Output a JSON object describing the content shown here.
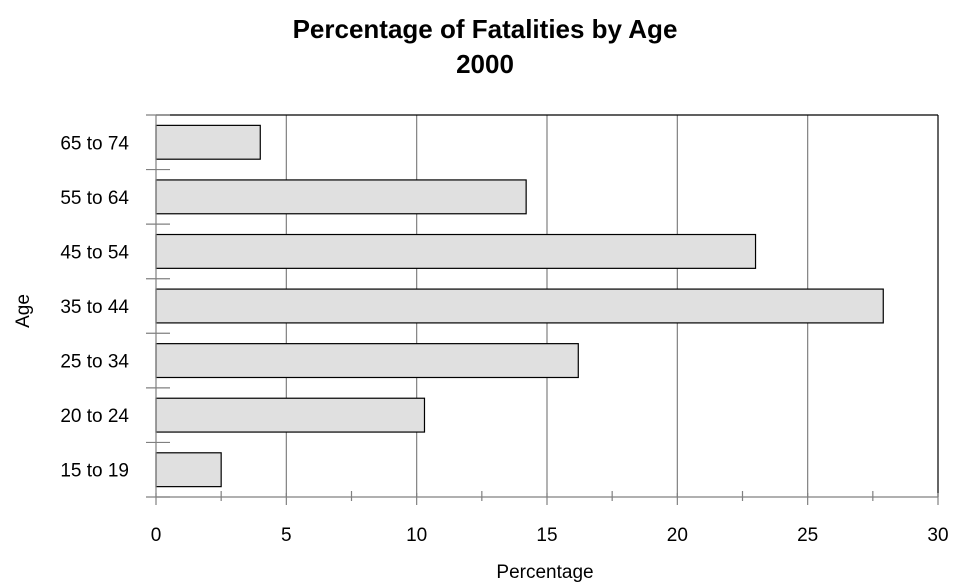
{
  "chart_data": {
    "type": "bar",
    "orientation": "horizontal",
    "title": "Percentage of Fatalities by Age",
    "subtitle": "2000",
    "xlabel": "Percentage",
    "ylabel": "Age",
    "categories": [
      "15 to 19",
      "20 to 24",
      "25 to 34",
      "35 to 44",
      "45 to 54",
      "55 to 64",
      "65 to 74"
    ],
    "values": [
      2.5,
      10.3,
      16.2,
      27.9,
      23.0,
      14.2,
      4.0
    ],
    "xlim": [
      0,
      30
    ],
    "xticks": [
      "0",
      "5",
      "10",
      "15",
      "20",
      "25",
      "30"
    ],
    "grid": "vertical",
    "colors": {
      "bar_fill": "#e0e0e0",
      "bar_stroke": "#000000",
      "grid": "#808080",
      "axis": "#000000"
    }
  }
}
